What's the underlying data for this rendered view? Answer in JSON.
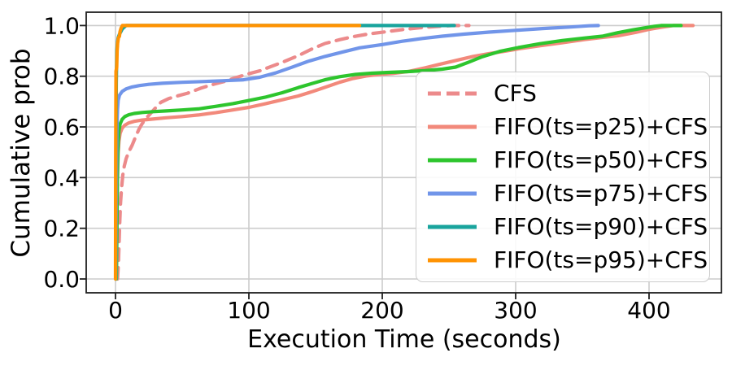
{
  "chart_data": {
    "type": "line",
    "title": "",
    "xlabel": "Execution Time (seconds)",
    "ylabel": "Cumulative prob",
    "xlim": [
      -22,
      454
    ],
    "ylim": [
      -0.055,
      1.055
    ],
    "xtick_values": [
      0,
      100,
      200,
      300,
      400
    ],
    "xtick_labels": [
      "0",
      "100",
      "200",
      "300",
      "400"
    ],
    "ytick_values": [
      0.0,
      0.2,
      0.4,
      0.6,
      0.8,
      1.0
    ],
    "ytick_labels": [
      "0.0",
      "0.2",
      "0.4",
      "0.6",
      "0.8",
      "1.0"
    ],
    "grid": true,
    "grid_color": "#cccccc",
    "spine_color": "#1f1f1f",
    "legend_position": "lower right",
    "series": [
      {
        "name": "CFS",
        "color": "#ec8a8b",
        "dash": true,
        "points": [
          [
            1.5,
            0
          ],
          [
            2.2,
            0.06
          ],
          [
            2.7,
            0.14
          ],
          [
            3.2,
            0.22
          ],
          [
            3.8,
            0.3
          ],
          [
            4.6,
            0.36
          ],
          [
            5.5,
            0.41
          ],
          [
            6.6,
            0.445
          ],
          [
            8,
            0.475
          ],
          [
            10,
            0.502
          ],
          [
            12.5,
            0.528
          ],
          [
            15,
            0.56
          ],
          [
            17.5,
            0.59
          ],
          [
            20,
            0.613
          ],
          [
            23,
            0.634
          ],
          [
            26,
            0.651
          ],
          [
            30,
            0.675
          ],
          [
            34,
            0.697
          ],
          [
            40,
            0.712
          ],
          [
            47,
            0.723
          ],
          [
            54,
            0.733
          ],
          [
            64,
            0.753
          ],
          [
            74,
            0.769
          ],
          [
            82,
            0.78
          ],
          [
            90,
            0.794
          ],
          [
            100,
            0.81
          ],
          [
            108,
            0.821
          ],
          [
            116,
            0.837
          ],
          [
            126,
            0.857
          ],
          [
            137,
            0.881
          ],
          [
            147,
            0.907
          ],
          [
            157,
            0.929
          ],
          [
            168,
            0.944
          ],
          [
            178,
            0.956
          ],
          [
            190,
            0.967
          ],
          [
            202,
            0.975
          ],
          [
            215,
            0.984
          ],
          [
            228,
            0.991
          ],
          [
            240,
            0.996
          ],
          [
            252,
            1
          ],
          [
            265,
            1
          ]
        ]
      },
      {
        "name": "FIFO(ts=p25)+CFS",
        "color": "#f2897b",
        "dash": false,
        "points": [
          [
            0.6,
            0
          ],
          [
            1,
            0.18
          ],
          [
            1.4,
            0.38
          ],
          [
            2,
            0.5
          ],
          [
            2.6,
            0.545
          ],
          [
            3.5,
            0.575
          ],
          [
            5,
            0.595
          ],
          [
            7,
            0.607
          ],
          [
            10,
            0.616
          ],
          [
            14,
            0.622
          ],
          [
            20,
            0.627
          ],
          [
            28,
            0.631
          ],
          [
            38,
            0.636
          ],
          [
            50,
            0.641
          ],
          [
            62,
            0.647
          ],
          [
            75,
            0.656
          ],
          [
            88,
            0.667
          ],
          [
            100,
            0.677
          ],
          [
            112,
            0.691
          ],
          [
            125,
            0.707
          ],
          [
            137,
            0.722
          ],
          [
            148,
            0.74
          ],
          [
            157,
            0.756
          ],
          [
            168,
            0.776
          ],
          [
            178,
            0.791
          ],
          [
            188,
            0.801
          ],
          [
            198,
            0.807
          ],
          [
            208,
            0.811
          ],
          [
            220,
            0.819
          ],
          [
            232,
            0.833
          ],
          [
            243,
            0.847
          ],
          [
            255,
            0.862
          ],
          [
            268,
            0.878
          ],
          [
            280,
            0.889
          ],
          [
            292,
            0.899
          ],
          [
            302,
            0.908
          ],
          [
            318,
            0.92
          ],
          [
            335,
            0.932
          ],
          [
            352,
            0.945
          ],
          [
            365,
            0.953
          ],
          [
            377,
            0.96
          ],
          [
            390,
            0.973
          ],
          [
            400,
            0.985
          ],
          [
            410,
            0.994
          ],
          [
            418,
            1
          ],
          [
            433,
            1
          ]
        ]
      },
      {
        "name": "FIFO(ts=p50)+CFS",
        "color": "#2dc52d",
        "dash": false,
        "points": [
          [
            0.7,
            0
          ],
          [
            1.1,
            0.22
          ],
          [
            1.5,
            0.44
          ],
          [
            2,
            0.54
          ],
          [
            2.6,
            0.585
          ],
          [
            3.5,
            0.612
          ],
          [
            5,
            0.63
          ],
          [
            7,
            0.641
          ],
          [
            10,
            0.648
          ],
          [
            14,
            0.653
          ],
          [
            20,
            0.657
          ],
          [
            28,
            0.66
          ],
          [
            38,
            0.663
          ],
          [
            50,
            0.667
          ],
          [
            62,
            0.671
          ],
          [
            75,
            0.681
          ],
          [
            88,
            0.692
          ],
          [
            100,
            0.704
          ],
          [
            112,
            0.717
          ],
          [
            125,
            0.735
          ],
          [
            137,
            0.755
          ],
          [
            148,
            0.772
          ],
          [
            157,
            0.786
          ],
          [
            168,
            0.798
          ],
          [
            180,
            0.807
          ],
          [
            192,
            0.812
          ],
          [
            205,
            0.815
          ],
          [
            218,
            0.818
          ],
          [
            232,
            0.822
          ],
          [
            245,
            0.828
          ],
          [
            255,
            0.836
          ],
          [
            265,
            0.856
          ],
          [
            275,
            0.877
          ],
          [
            288,
            0.898
          ],
          [
            302,
            0.913
          ],
          [
            318,
            0.928
          ],
          [
            335,
            0.941
          ],
          [
            352,
            0.951
          ],
          [
            365,
            0.958
          ],
          [
            377,
            0.972
          ],
          [
            388,
            0.983
          ],
          [
            397,
            0.991
          ],
          [
            404,
            0.997
          ],
          [
            409,
            1
          ],
          [
            424,
            1
          ]
        ]
      },
      {
        "name": "FIFO(ts=p75)+CFS",
        "color": "#7195e9",
        "dash": false,
        "points": [
          [
            0.3,
            0
          ],
          [
            0.6,
            0.35
          ],
          [
            1,
            0.58
          ],
          [
            1.5,
            0.67
          ],
          [
            2,
            0.705
          ],
          [
            3,
            0.725
          ],
          [
            5,
            0.74
          ],
          [
            8,
            0.75
          ],
          [
            12,
            0.757
          ],
          [
            18,
            0.763
          ],
          [
            25,
            0.768
          ],
          [
            35,
            0.772
          ],
          [
            50,
            0.776
          ],
          [
            65,
            0.779
          ],
          [
            80,
            0.782
          ],
          [
            96,
            0.786
          ],
          [
            108,
            0.796
          ],
          [
            120,
            0.813
          ],
          [
            132,
            0.835
          ],
          [
            144,
            0.858
          ],
          [
            157,
            0.878
          ],
          [
            170,
            0.895
          ],
          [
            183,
            0.912
          ],
          [
            200,
            0.925
          ],
          [
            215,
            0.938
          ],
          [
            230,
            0.949
          ],
          [
            245,
            0.958
          ],
          [
            261,
            0.966
          ],
          [
            280,
            0.974
          ],
          [
            300,
            0.981
          ],
          [
            320,
            0.988
          ],
          [
            340,
            0.994
          ],
          [
            355,
            0.999
          ],
          [
            362,
            1
          ]
        ]
      },
      {
        "name": "FIFO(ts=p90)+CFS",
        "color": "#19a49d",
        "dash": false,
        "points": [
          [
            0.1,
            0
          ],
          [
            0.3,
            0.5
          ],
          [
            0.6,
            0.78
          ],
          [
            1,
            0.9
          ],
          [
            1.5,
            0.935
          ],
          [
            2,
            0.952
          ],
          [
            3,
            0.966
          ],
          [
            4,
            0.976
          ],
          [
            5,
            0.986
          ],
          [
            6.5,
            0.994
          ],
          [
            8,
            1
          ],
          [
            254,
            1
          ]
        ]
      },
      {
        "name": "FIFO(ts=p95)+CFS",
        "color": "#ff9303",
        "dash": false,
        "points": [
          [
            0,
            0
          ],
          [
            0.2,
            0.55
          ],
          [
            0.35,
            0.82
          ],
          [
            0.9,
            0.835
          ],
          [
            1.2,
            0.9
          ],
          [
            1.6,
            0.93
          ],
          [
            2.2,
            0.952
          ],
          [
            2.9,
            0.957
          ],
          [
            3.4,
            0.976
          ],
          [
            4.2,
            0.99
          ],
          [
            5.2,
            1
          ],
          [
            183,
            1
          ]
        ]
      }
    ]
  }
}
